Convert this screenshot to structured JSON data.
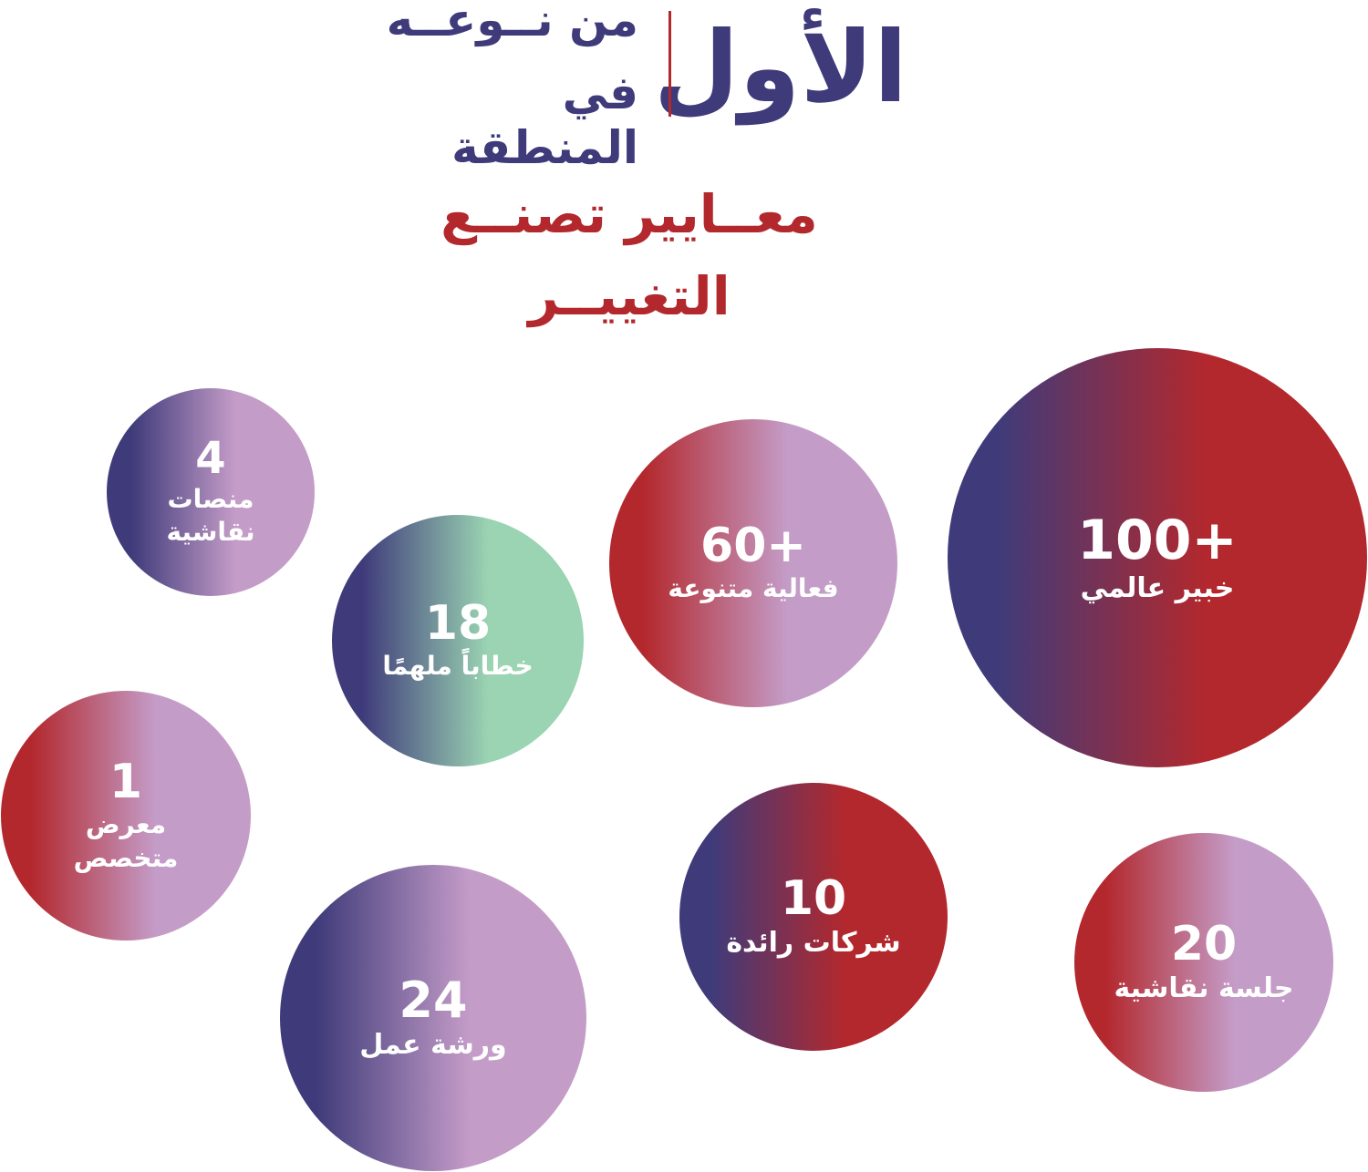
{
  "header": {
    "title": "الأول",
    "line1": "من نــوعــه",
    "line2": "في المنطقة",
    "subtitle": "معــايير تصنــع التغييــر"
  },
  "colors": {
    "navy": "#3f3b7a",
    "red": "#b3282d",
    "lavender": "#c49cc8",
    "green": "#9ad4b2"
  },
  "stats": [
    {
      "value": "100+",
      "label": "خبير عالمي",
      "from": "#3f3b7a",
      "to": "#b3282d"
    },
    {
      "value": "60+",
      "label": "فعالية متنوعة",
      "from": "#b3282d",
      "to": "#c49cc8"
    },
    {
      "value": "4",
      "label": "منصات نقاشية",
      "from": "#3f3b7a",
      "to": "#c49cc8"
    },
    {
      "value": "18",
      "label": "خطاباً ملهمًا",
      "from": "#3f3b7a",
      "to": "#9ad4b2"
    },
    {
      "value": "1",
      "label": "معرض متخصص",
      "from": "#b3282d",
      "to": "#c49cc8"
    },
    {
      "value": "24",
      "label": "ورشة عمل",
      "from": "#3f3b7a",
      "to": "#c49cc8"
    },
    {
      "value": "10",
      "label": "شركات رائدة",
      "from": "#3f3b7a",
      "to": "#b3282d"
    },
    {
      "value": "20",
      "label": "جلسة نقاشية",
      "from": "#b3282d",
      "to": "#c49cc8"
    }
  ]
}
